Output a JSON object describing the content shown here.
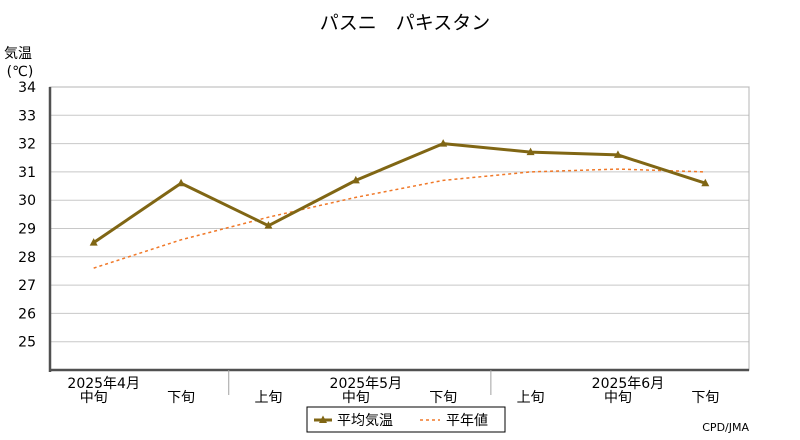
{
  "chart_data": {
    "type": "line",
    "title": "パスニ　パキスタン",
    "ylabel_line1": "気温",
    "ylabel_line2": "(℃)",
    "ylim": [
      24,
      34
    ],
    "yticks": [
      25,
      26,
      27,
      28,
      29,
      30,
      31,
      32,
      33,
      34
    ],
    "categories": [
      "中旬",
      "下旬",
      "上旬",
      "中旬",
      "下旬",
      "上旬",
      "中旬",
      "下旬"
    ],
    "month_labels": [
      {
        "label": "2025年4月",
        "index": 0
      },
      {
        "label": "2025年5月",
        "index": 3
      },
      {
        "label": "2025年6月",
        "index": 6
      }
    ],
    "series": [
      {
        "name": "平均気温",
        "color": "#806614",
        "style": "solid-triangle",
        "values": [
          28.5,
          30.6,
          29.1,
          30.7,
          32.0,
          31.7,
          31.6,
          30.6
        ]
      },
      {
        "name": "平年値",
        "color": "#f07828",
        "style": "dashed",
        "values": [
          27.6,
          28.6,
          29.4,
          30.1,
          30.7,
          31.0,
          31.1,
          31.0
        ]
      }
    ],
    "grid": true,
    "legend_position": "bottom-center",
    "source": "CPD/JMA"
  }
}
